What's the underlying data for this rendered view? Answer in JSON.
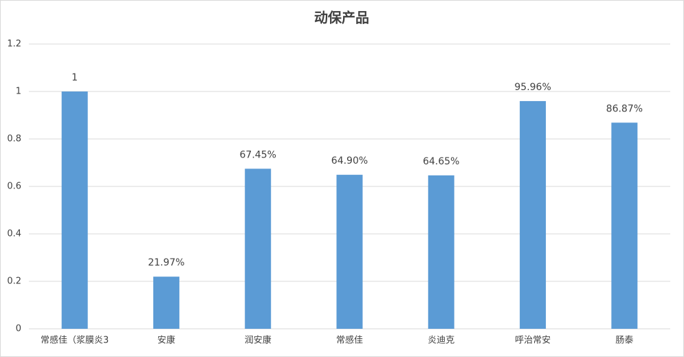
{
  "chart_data": {
    "type": "bar",
    "title": "动保产品",
    "categories": [
      "常感佳（浆膜炎3",
      "安康",
      "润安康",
      "常感佳",
      "炎迪克",
      "呼治常安",
      "肠泰"
    ],
    "values": [
      1,
      0.2197,
      0.6745,
      0.649,
      0.6465,
      0.9596,
      0.8687
    ],
    "value_labels": [
      "1",
      "21.97%",
      "67.45%",
      "64.90%",
      "64.65%",
      "95.96%",
      "86.87%"
    ],
    "color": "#5b9bd5",
    "ylim": [
      0,
      1.2
    ],
    "yticks": [
      0,
      0.2,
      0.4,
      0.6,
      0.8,
      1,
      1.2
    ],
    "grid": true
  }
}
